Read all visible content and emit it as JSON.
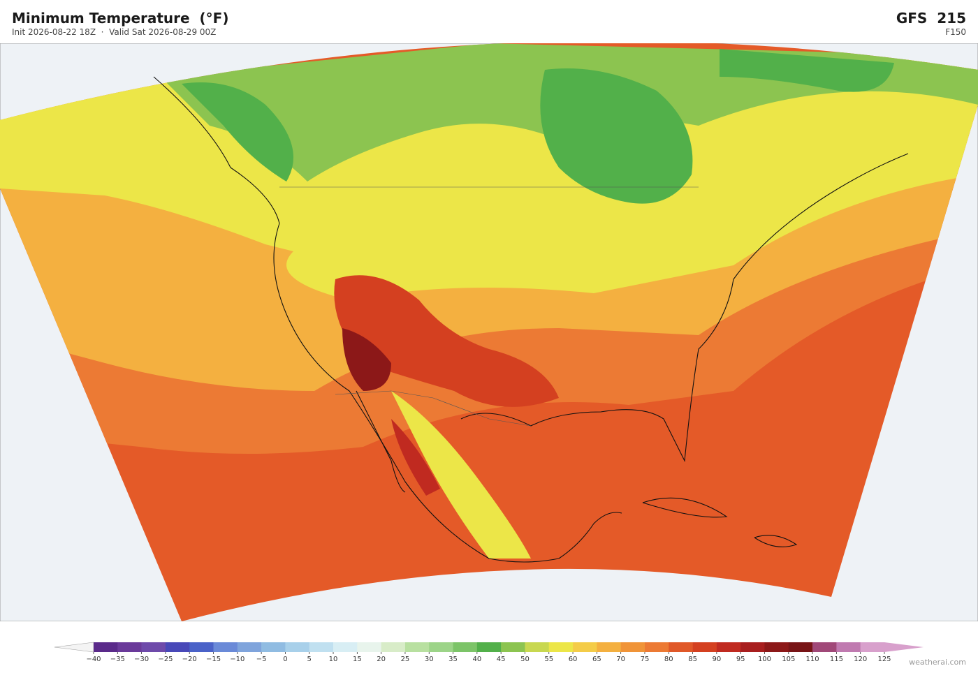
{
  "header": {
    "title": "Minimum Temperature  (°F)",
    "subtitle": "Init 2026-08-22 18Z  ·  Valid Sat 2026-08-29 00Z",
    "model": "GFS  215",
    "forecast_hour": "F150"
  },
  "colorbar": {
    "ticks": [
      {
        "value": -40,
        "label": "−40"
      },
      {
        "value": -35,
        "label": "−35"
      },
      {
        "value": -30,
        "label": "−30"
      },
      {
        "value": -25,
        "label": "−25"
      },
      {
        "value": -20,
        "label": "−20"
      },
      {
        "value": -15,
        "label": "−15"
      },
      {
        "value": -10,
        "label": "−10"
      },
      {
        "value": -5,
        "label": "−5"
      },
      0,
      5,
      10,
      15,
      20,
      25,
      30,
      35,
      40,
      45,
      50,
      55,
      60,
      65,
      70,
      75,
      80,
      85,
      90,
      95,
      100,
      105,
      110,
      115,
      120,
      125
    ],
    "colors": [
      "#5a2a8a",
      "#6a3a9a",
      "#6e4aaa",
      "#4848b8",
      "#4a62c8",
      "#6a8ad8",
      "#7fa4dc",
      "#90bce2",
      "#a8d0ea",
      "#c0e0f0",
      "#d8eef4",
      "#e8f4ec",
      "#d8ecc8",
      "#b8e0a0",
      "#9cd488",
      "#7cc468",
      "#52b04a",
      "#8cc450",
      "#c8d850",
      "#ece648",
      "#f4cc48",
      "#f4b040",
      "#f09438",
      "#ec7a34",
      "#e05828",
      "#d44020",
      "#c02a20",
      "#a81e1e",
      "#8c1818",
      "#781416",
      "#a04878",
      "#c07ab0",
      "#d8a0cc"
    ],
    "under_color": "#f4f4f4",
    "over_color": "#d8a0cc"
  },
  "footer": {
    "watermark": "weatherai.com"
  }
}
